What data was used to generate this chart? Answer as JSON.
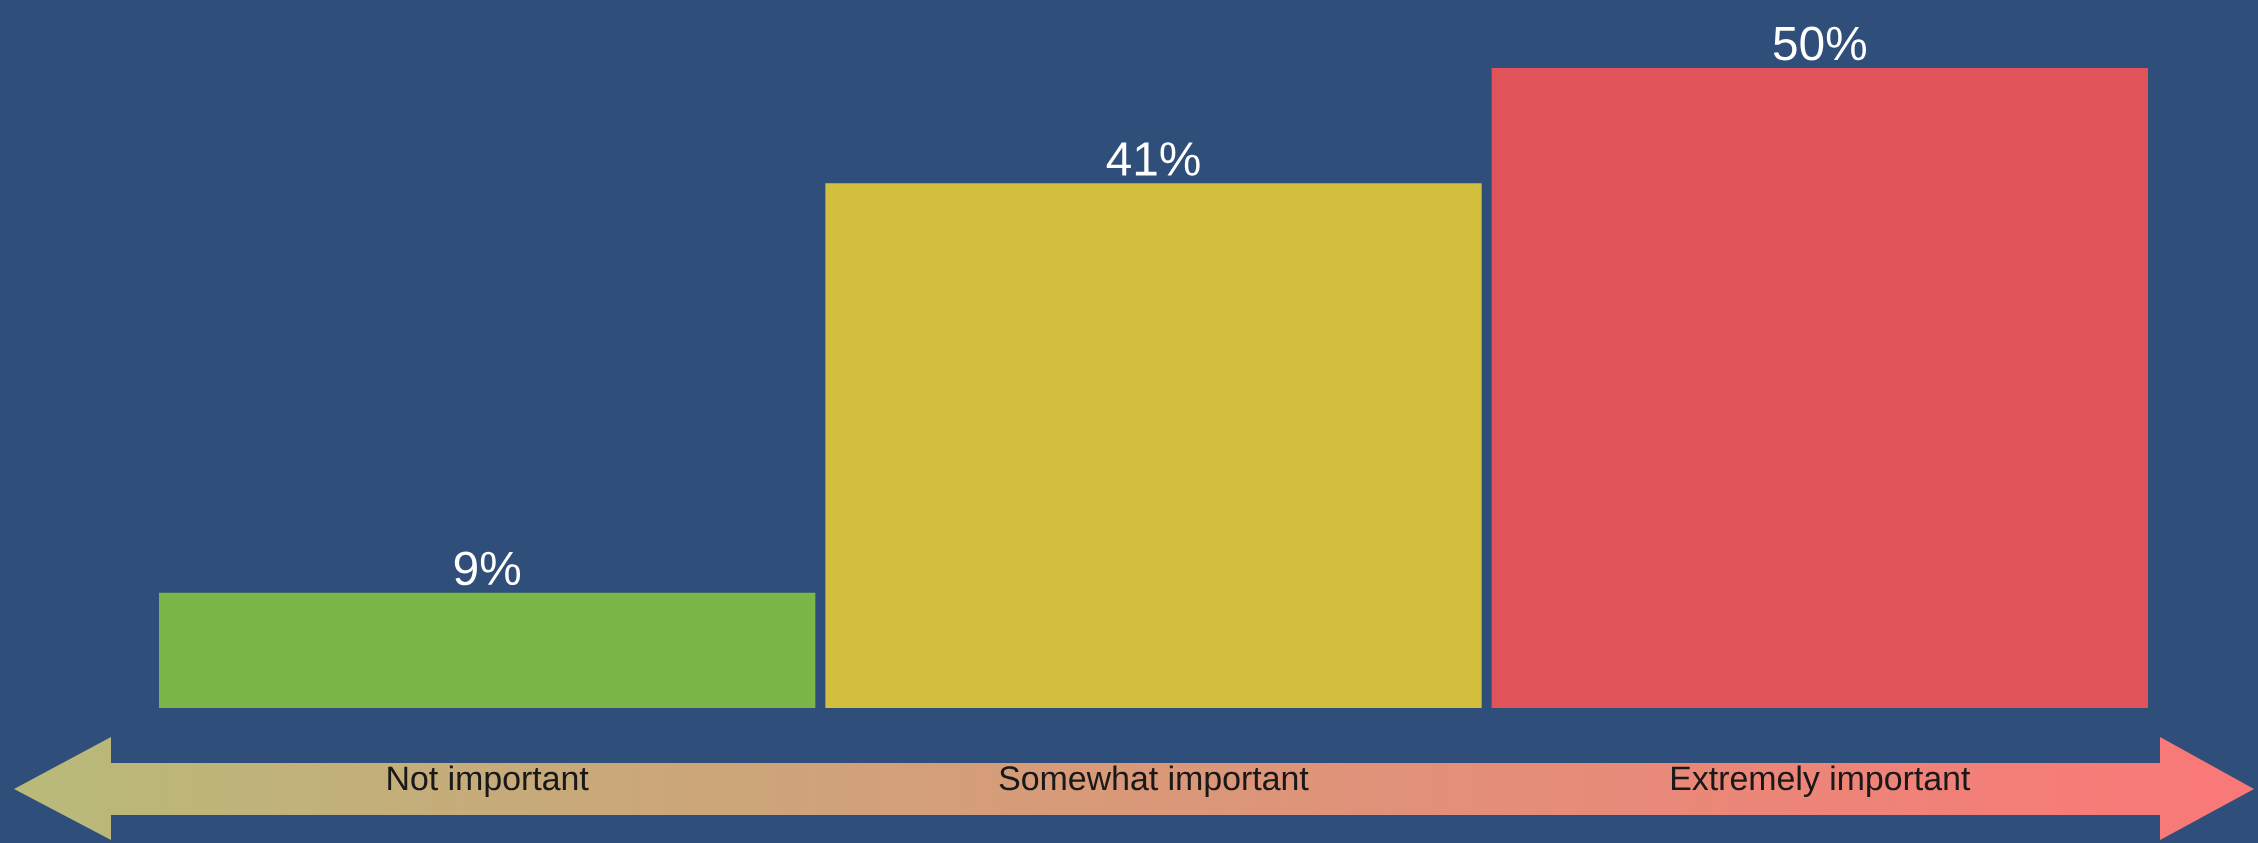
{
  "chart_data": {
    "type": "bar",
    "categories": [
      "Not important",
      "Somewhat important",
      "Extremely important"
    ],
    "values": [
      9,
      41,
      50
    ],
    "colors": [
      "#7ab648",
      "#d1bf3d",
      "#e0535a"
    ],
    "value_labels": [
      "9%",
      "41%",
      "50%"
    ]
  }
}
